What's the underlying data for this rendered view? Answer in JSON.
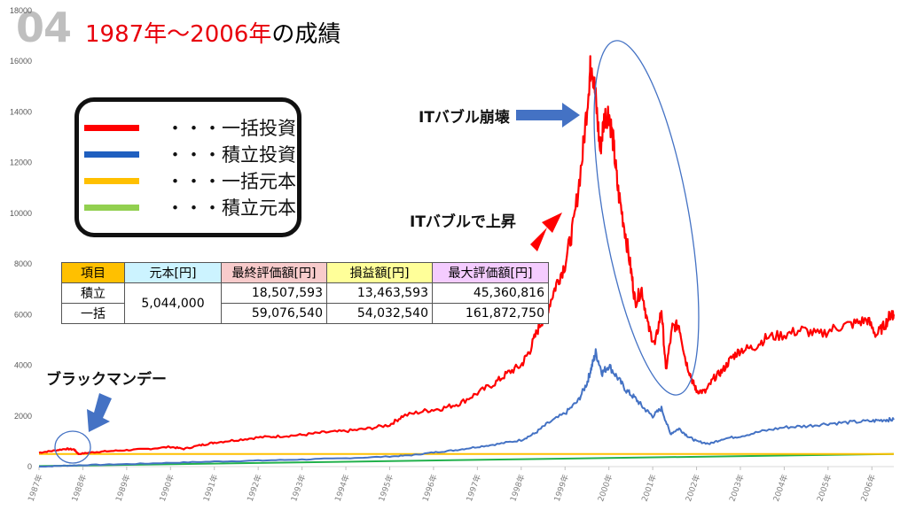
{
  "page_number": "04",
  "title": {
    "years": "1987年〜2006年",
    "suffix": "の成績"
  },
  "legend": [
    {
      "label": "・・・一括投資",
      "color": "#ff0000"
    },
    {
      "label": "・・・積立投資",
      "color": "#1f5fbf"
    },
    {
      "label": "・・・一括元本",
      "color": "#ffc000"
    },
    {
      "label": "・・・積立元本",
      "color": "#92d050"
    }
  ],
  "table": {
    "headers": [
      "項目",
      "元本[円]",
      "最終評価額[円]",
      "損益額[円]",
      "最大評価額[円]"
    ],
    "header_colors": [
      "#ffc000",
      "#ccf3ff",
      "#f8cbcb",
      "#ffff99",
      "#f4ccff"
    ],
    "principal": "5,044,000",
    "rows": [
      {
        "label": "積立",
        "final": "18,507,593",
        "pnl": "13,463,593",
        "max": "45,360,816"
      },
      {
        "label": "一括",
        "final": "59,076,540",
        "pnl": "54,032,540",
        "max": "161,872,750"
      }
    ]
  },
  "annotations": {
    "it_crash": "ITバブル崩壊",
    "it_rise": "ITバブルで上昇",
    "black_monday": "ブラックマンデー"
  },
  "chart_data": {
    "type": "line",
    "ylim": [
      0,
      18000
    ],
    "yticks": [
      0,
      2000,
      4000,
      6000,
      8000,
      10000,
      12000,
      14000,
      16000,
      18000
    ],
    "xlim": [
      1987.0,
      2006.5
    ],
    "xticks": [
      "1987年",
      "1988年",
      "1989年",
      "1990年",
      "1991年",
      "1992年",
      "1993年",
      "1994年",
      "1995年",
      "1996年",
      "1997年",
      "1998年",
      "1999年",
      "2000年",
      "2001年",
      "2002年",
      "2003年",
      "2004年",
      "2005年",
      "2006年"
    ],
    "series": [
      {
        "name": "一括投資",
        "color": "#ff0000",
        "x": [
          1987.0,
          1987.3,
          1987.6,
          1987.8,
          1987.9,
          1988.2,
          1988.5,
          1989.0,
          1989.5,
          1990.0,
          1990.3,
          1990.7,
          1991.0,
          1991.5,
          1992.0,
          1992.5,
          1993.0,
          1993.5,
          1994.0,
          1994.5,
          1995.0,
          1995.3,
          1995.8,
          1996.2,
          1996.6,
          1997.0,
          1997.4,
          1997.7,
          1998.0,
          1998.2,
          1998.4,
          1998.6,
          1998.8,
          1999.0,
          1999.2,
          1999.4,
          1999.55,
          1999.6,
          1999.7,
          1999.8,
          1999.9,
          2000.0,
          2000.1,
          2000.2,
          2000.35,
          2000.5,
          2000.6,
          2000.75,
          2000.9,
          2001.05,
          2001.2,
          2001.3,
          2001.45,
          2001.6,
          2001.75,
          2001.9,
          2002.0,
          2002.2,
          2002.4,
          2002.6,
          2002.8,
          2003.0,
          2003.3,
          2003.6,
          2004.0,
          2004.4,
          2004.8,
          2005.2,
          2005.6,
          2005.9,
          2006.1,
          2006.3,
          2006.45,
          2006.5
        ],
        "values": [
          550,
          620,
          700,
          680,
          500,
          560,
          600,
          650,
          700,
          780,
          700,
          850,
          950,
          1050,
          1150,
          1200,
          1250,
          1350,
          1400,
          1500,
          1650,
          2000,
          2200,
          2300,
          2500,
          2900,
          3300,
          3700,
          4000,
          4600,
          5500,
          6200,
          7200,
          8000,
          9600,
          12300,
          15200,
          16100,
          14500,
          12500,
          13800,
          14000,
          12800,
          11000,
          9500,
          7800,
          6500,
          7000,
          5500,
          4800,
          6200,
          3800,
          5500,
          5600,
          4200,
          3400,
          3000,
          2950,
          3500,
          3800,
          4300,
          4600,
          4700,
          5100,
          5200,
          5400,
          5200,
          5500,
          5650,
          5800,
          5200,
          5600,
          6100,
          5950
        ]
      },
      {
        "name": "積立投資",
        "color": "#4472c4",
        "x": [
          1987.0,
          1987.5,
          1988.0,
          1989.0,
          1990.0,
          1991.0,
          1992.0,
          1993.0,
          1994.0,
          1995.0,
          1995.5,
          1996.0,
          1996.5,
          1997.0,
          1997.5,
          1998.0,
          1998.3,
          1998.6,
          1999.0,
          1999.3,
          1999.5,
          1999.6,
          1999.7,
          1999.85,
          2000.0,
          2000.2,
          2000.4,
          2000.6,
          2000.8,
          2001.0,
          2001.2,
          2001.4,
          2001.6,
          2001.8,
          2002.0,
          2002.3,
          2002.6,
          2003.0,
          2003.5,
          2004.0,
          2004.5,
          2005.0,
          2005.5,
          2006.0,
          2006.3,
          2006.5
        ],
        "values": [
          0,
          30,
          60,
          100,
          150,
          200,
          240,
          280,
          330,
          400,
          450,
          560,
          650,
          780,
          900,
          1050,
          1300,
          1700,
          2100,
          2600,
          3300,
          3900,
          4500,
          3700,
          4000,
          3500,
          3000,
          2700,
          2300,
          2000,
          2300,
          1300,
          1500,
          1200,
          1000,
          900,
          1100,
          1200,
          1400,
          1550,
          1600,
          1700,
          1750,
          1800,
          1850,
          1850
        ]
      },
      {
        "name": "一括元本",
        "color": "#ffc000",
        "x": [
          1987.0,
          2006.5
        ],
        "values": [
          500,
          500
        ]
      },
      {
        "name": "積立元本",
        "color": "#22b14c",
        "x": [
          1987.0,
          2006.5
        ],
        "values": [
          20,
          500
        ]
      }
    ]
  }
}
